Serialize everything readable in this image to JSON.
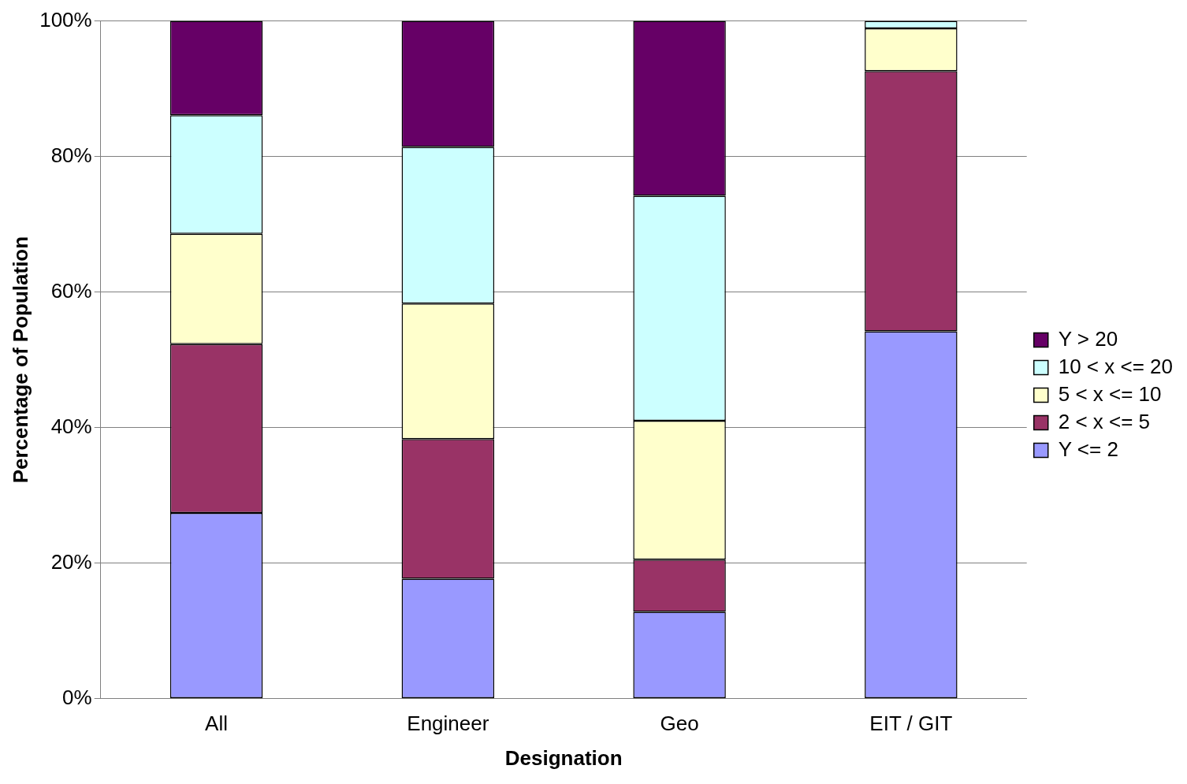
{
  "chart_data": {
    "type": "bar",
    "stacked": true,
    "xlabel": "Designation",
    "ylabel": "Percentage of Population",
    "categories": [
      "All",
      "Engineer",
      "Geo",
      "EIT / GIT"
    ],
    "series": [
      {
        "name": "Y <= 2",
        "color": "#9999ff",
        "values": [
          27.4,
          17.7,
          12.8,
          54.2
        ]
      },
      {
        "name": "2 < x <= 5",
        "color": "#993366",
        "values": [
          24.9,
          20.6,
          7.7,
          38.4
        ]
      },
      {
        "name": "5 < x <= 10",
        "color": "#ffffcc",
        "values": [
          16.3,
          20.0,
          20.5,
          6.3
        ]
      },
      {
        "name": "10 < x <= 20",
        "color": "#ccffff",
        "values": [
          17.5,
          23.1,
          33.2,
          1.1
        ]
      },
      {
        "name": "Y > 20",
        "color": "#660066",
        "values": [
          13.9,
          18.6,
          25.8,
          0
        ]
      }
    ],
    "ylim": [
      0,
      100
    ],
    "yticks": [
      {
        "value": 0,
        "label": "0%"
      },
      {
        "value": 20,
        "label": "20%"
      },
      {
        "value": 40,
        "label": "40%"
      },
      {
        "value": 60,
        "label": "60%"
      },
      {
        "value": 80,
        "label": "80%"
      },
      {
        "value": 100,
        "label": "100%"
      }
    ],
    "grid": "y",
    "legend": "right"
  }
}
